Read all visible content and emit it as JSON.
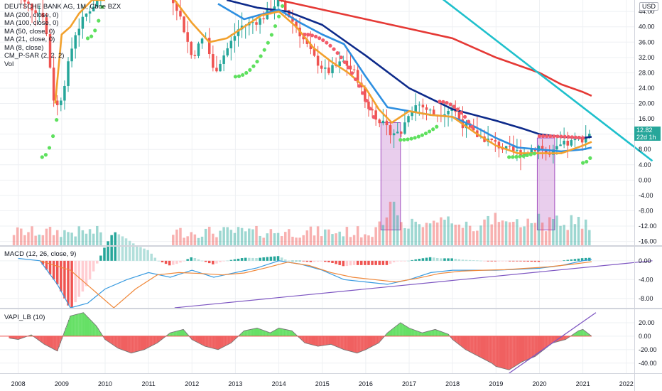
{
  "header": {
    "title": "DEUTSCHE BANK AG, 1M, Cboe BZX",
    "currency_button": "USD"
  },
  "legend_items": [
    "MA (200, close, 0)",
    "MA (100, close, 0)",
    "MA (50, close, 0)",
    "MA (21, close, 0)",
    "MA (8, close)",
    "CM_P-SAR (2, 2, 2)",
    "Vol"
  ],
  "panes": {
    "macd_label": "MACD (12, 26, close, 9)",
    "vapi_label": "VAPI_LB (10)"
  },
  "price_tag": {
    "value": "12.82",
    "countdown": "22d 1h",
    "color": "#26a69a"
  },
  "colors": {
    "up": "#26a69a",
    "down": "#ef5350",
    "ma200": "#e53935",
    "ma100": "#0d2a8a",
    "ma50": "#2e8fe0",
    "ma21": "#f2a12d",
    "trend": "#1fc0cc",
    "sar_up": "#5ee05e",
    "sar_down": "#f25b6a",
    "highlight": "#ce93d8",
    "macd_line": "#3a9be0",
    "signal_line": "#f0883a",
    "purple_line": "#7e57c2",
    "vapi_pos": "#66e066",
    "vapi_neg": "#f06060"
  },
  "chart_data": [
    {
      "type": "line",
      "title": "DEUTSCHE BANK AG, 1M, Cboe BZX",
      "x_ticks": [
        "2008",
        "2009",
        "2010",
        "2011",
        "2012",
        "2013",
        "2014",
        "2015",
        "2016",
        "2017",
        "2018",
        "2019",
        "2020",
        "2021",
        "2022"
      ],
      "y_ticks": [
        "44.00",
        "40.00",
        "36.00",
        "32.00",
        "28.00",
        "24.00",
        "20.00",
        "16.00",
        "12.00",
        "8.00",
        "4.00",
        "0.00",
        "-4.00",
        "-8.00",
        "-12.00",
        "-16.00"
      ],
      "ylim": [
        -17,
        47
      ],
      "last_price": 12.82,
      "series": [
        {
          "name": "MA (200, close, 0)",
          "x": [
            2014.0,
            2015.0,
            2016.0,
            2017.0,
            2018.0,
            2019.0,
            2020.0,
            2020.5,
            2021.0,
            2021.2
          ],
          "values": [
            47,
            44.5,
            42,
            39.5,
            37,
            32,
            28,
            25,
            23,
            22
          ]
        },
        {
          "name": "MA (100, close, 0)",
          "x": [
            2012.8,
            2013.5,
            2014.2,
            2015.0,
            2016.0,
            2017.0,
            2018.0,
            2019.0,
            2019.6,
            2020.0,
            2020.5,
            2021.0,
            2021.2
          ],
          "values": [
            47,
            45,
            44,
            40.5,
            32.5,
            24,
            18.5,
            15.5,
            13.5,
            12,
            11.3,
            11,
            11.3
          ]
        },
        {
          "name": "MA (50, close, 0)",
          "x": [
            2012.6,
            2013.2,
            2014.0,
            2014.5,
            2015.0,
            2015.5,
            2016.0,
            2016.5,
            2017.0,
            2017.5,
            2018.0,
            2018.5,
            2019.0,
            2019.5,
            2020.0,
            2020.5,
            2021.0,
            2021.2
          ],
          "values": [
            46,
            42,
            44.5,
            41,
            38,
            35.5,
            27,
            19,
            18,
            17,
            16.5,
            14,
            11,
            8.5,
            8,
            7.5,
            8,
            8.5
          ]
        },
        {
          "name": "MA (21, close, 0)",
          "x": [
            2008.85,
            2009.0,
            2009.2,
            2009.4,
            2009.7,
            2010.0
          ],
          "values": [
            20,
            38,
            40,
            43.5,
            47,
            47
          ]
        },
        {
          "name": "MA (21, close, 0)",
          "x": [
            2011.6,
            2012.0,
            2012.4,
            2012.8,
            2013.2,
            2013.6,
            2014.0,
            2014.4,
            2014.8,
            2015.2,
            2015.6,
            2016.0,
            2016.3,
            2016.6,
            2017.0,
            2017.5,
            2018.0,
            2018.5,
            2019.0,
            2019.5,
            2020.0,
            2020.5,
            2021.0,
            2021.2
          ],
          "values": [
            47,
            41,
            36,
            37,
            40,
            43,
            44,
            40,
            34.5,
            31,
            28,
            24,
            18.5,
            15,
            18,
            17,
            16.5,
            12.5,
            9,
            7,
            7,
            7,
            9,
            10
          ]
        },
        {
          "name": "Trend line",
          "x": [
            2017.0,
            2022.6
          ],
          "values": [
            54,
            5
          ]
        }
      ],
      "highlights": [
        {
          "x": [
            2016.35,
            2016.8
          ],
          "y": [
            -13,
            15
          ]
        },
        {
          "x": [
            2019.95,
            2020.35
          ],
          "y": [
            -13,
            11
          ]
        }
      ],
      "volume_spikes": [
        {
          "x": 2016.6,
          "value": 0.9
        },
        {
          "x": 2016.7,
          "value": 0.62
        },
        {
          "x": 2019.7,
          "value": 0.55
        },
        {
          "x": 2020.2,
          "value": 0.58
        }
      ]
    },
    {
      "type": "bar",
      "title": "MACD (12, 26, close, 9)",
      "y_ticks": [
        "0.00",
        "-4.00",
        "-8.00"
      ],
      "ylim": [
        -10,
        3
      ],
      "series": [
        {
          "name": "MACD",
          "x": [
            2008.0,
            2008.5,
            2008.9,
            2009.2,
            2009.6,
            2010.0,
            2010.5,
            2011.0,
            2011.5,
            2012.0,
            2012.5,
            2013.0,
            2013.5,
            2014.0,
            2014.5,
            2015.0,
            2015.5,
            2016.0,
            2016.5,
            2017.0,
            2017.5,
            2018.0,
            2018.5,
            2019.0,
            2019.5,
            2020.0,
            2020.5,
            2021.0,
            2021.2
          ],
          "values": [
            0.5,
            0,
            -5,
            -10,
            -9,
            -6,
            -4,
            -2.5,
            -3.5,
            -2,
            -3.5,
            -2.5,
            -1.5,
            0,
            -0.7,
            -2,
            -4,
            -4.5,
            -5,
            -4,
            -2.5,
            -2,
            -2,
            -2,
            -1.8,
            -1.6,
            -1,
            0,
            0.3
          ]
        },
        {
          "name": "Signal",
          "x": [
            2008.5,
            2009.2,
            2009.7,
            2010.2,
            2010.7,
            2011.2,
            2011.7,
            2012.2,
            2012.7,
            2013.2,
            2013.7,
            2014.2,
            2014.7,
            2015.2,
            2015.7,
            2016.2,
            2016.7,
            2017.2,
            2017.7,
            2018.2,
            2018.7,
            2019.2,
            2019.7,
            2020.2,
            2020.7,
            2021.2
          ],
          "values": [
            0,
            -2,
            -6,
            -10,
            -6,
            -3,
            -2.5,
            -2.7,
            -3,
            -2.6,
            -1.5,
            -0.3,
            -1,
            -2.5,
            -3.5,
            -4,
            -4.5,
            -3.7,
            -2.7,
            -2.2,
            -2,
            -1.9,
            -1.6,
            -1.3,
            -0.8,
            -0.2
          ]
        },
        {
          "name": "Trend line",
          "x": [
            2011.6,
            2022.6
          ],
          "values": [
            -10,
            0
          ]
        }
      ]
    },
    {
      "type": "area",
      "title": "VAPI_LB (10)",
      "y_ticks": [
        "20.00",
        "0.00",
        "-20.00",
        "-40.00"
      ],
      "ylim": [
        -55,
        40
      ],
      "series": [
        {
          "name": "VAPI_LB (10)",
          "x": [
            2007.8,
            2008.0,
            2008.3,
            2008.6,
            2008.9,
            2009.2,
            2009.5,
            2009.8,
            2010.0,
            2010.3,
            2010.6,
            2010.9,
            2011.2,
            2011.5,
            2011.8,
            2012.0,
            2012.3,
            2012.6,
            2012.9,
            2013.2,
            2013.5,
            2013.8,
            2014.0,
            2014.3,
            2014.6,
            2014.9,
            2015.2,
            2015.5,
            2015.8,
            2016.0,
            2016.3,
            2016.5,
            2016.8,
            2017.0,
            2017.3,
            2017.6,
            2017.9,
            2018.0,
            2018.3,
            2018.6,
            2018.9,
            2019.0,
            2019.3,
            2019.6,
            2019.9,
            2020.0,
            2020.3,
            2020.6,
            2020.9,
            2021.0,
            2021.2
          ],
          "values": [
            -3,
            -5,
            2,
            -12,
            -22,
            30,
            35,
            15,
            -5,
            -18,
            -25,
            -20,
            -10,
            5,
            10,
            -5,
            -15,
            -20,
            -10,
            8,
            12,
            5,
            12,
            8,
            -10,
            -15,
            -12,
            -20,
            -25,
            -20,
            -10,
            5,
            20,
            12,
            5,
            10,
            3,
            -5,
            -20,
            -30,
            -40,
            -45,
            -50,
            -38,
            -30,
            -25,
            -10,
            -5,
            8,
            10,
            0
          ]
        },
        {
          "name": "Trend line",
          "x": [
            2019.3,
            2021.3
          ],
          "values": [
            -55,
            35
          ]
        }
      ]
    }
  ]
}
